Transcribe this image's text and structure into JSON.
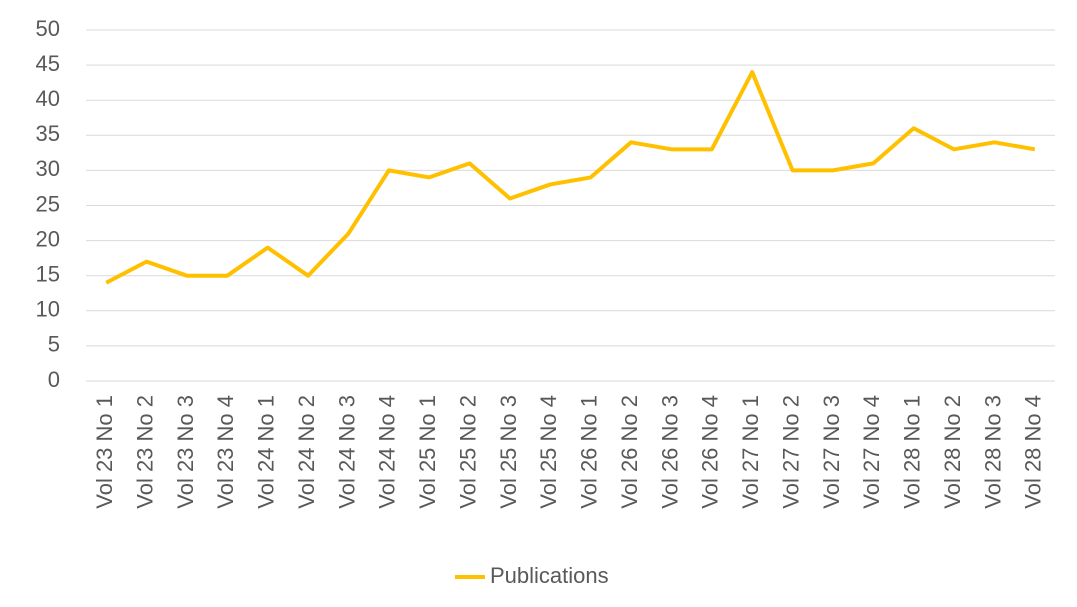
{
  "chart_data": {
    "type": "line",
    "categories": [
      "Vol 23 No 1",
      "Vol 23 No 2",
      "Vol 23 No 3",
      "Vol 23 No 4",
      "Vol 24 No 1",
      "Vol 24 No 2",
      "Vol 24 No 3",
      "Vol 24 No 4",
      "Vol 25 No 1",
      "Vol 25 No 2",
      "Vol 25 No 3",
      "Vol 25 No 4",
      "Vol 26 No 1",
      "Vol 26 No 2",
      "Vol 26 No 3",
      "Vol 26 No 4",
      "Vol 27 No 1",
      "Vol 27 No 2",
      "Vol 27 No 3",
      "Vol 27 No 4",
      "Vol 28 No 1",
      "Vol 28 No 2",
      "Vol 28 No 3",
      "Vol 28 No 4"
    ],
    "series": [
      {
        "name": "Publications",
        "color": "#ffc000",
        "values": [
          14,
          17,
          15,
          15,
          19,
          15,
          21,
          30,
          29,
          31,
          26,
          28,
          29,
          34,
          33,
          33,
          44,
          30,
          30,
          31,
          36,
          33,
          34,
          33
        ]
      }
    ],
    "ylim": [
      0,
      50
    ],
    "yticks": [
      0,
      5,
      10,
      15,
      20,
      25,
      30,
      35,
      40,
      45,
      50
    ],
    "grid": true,
    "legend": "bottom"
  }
}
